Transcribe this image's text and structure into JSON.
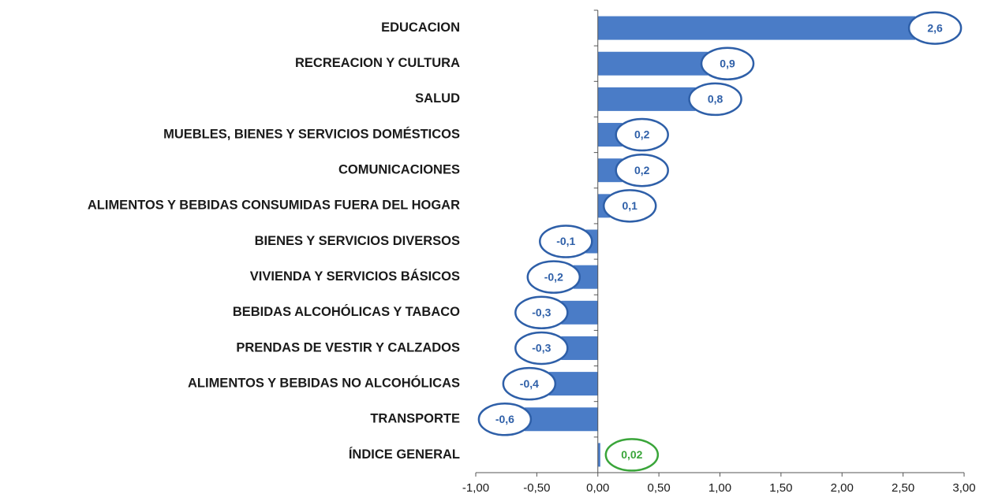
{
  "chart_data": {
    "type": "barh",
    "categories": [
      "EDUCACION",
      "RECREACION Y CULTURA",
      "SALUD",
      "MUEBLES, BIENES Y SERVICIOS DOMÉSTICOS",
      "COMUNICACIONES",
      "ALIMENTOS Y BEBIDAS CONSUMIDAS FUERA DEL HOGAR",
      "BIENES Y SERVICIOS DIVERSOS",
      "VIVIENDA Y SERVICIOS BÁSICOS",
      "BEBIDAS ALCOHÓLICAS Y TABACO",
      "PRENDAS DE VESTIR Y CALZADOS",
      "ALIMENTOS Y BEBIDAS NO ALCOHÓLICAS",
      "TRANSPORTE",
      "ÍNDICE GENERAL"
    ],
    "values": [
      2.6,
      0.9,
      0.8,
      0.2,
      0.2,
      0.1,
      -0.1,
      -0.2,
      -0.3,
      -0.3,
      -0.4,
      -0.6,
      0.02
    ],
    "value_labels": [
      "2,6",
      "0,9",
      "0,8",
      "0,2",
      "0,2",
      "0,1",
      "-0,1",
      "-0,2",
      "-0,3",
      "-0,3",
      "-0,4",
      "-0,6",
      "0,02"
    ],
    "color": "#4a7cc7",
    "label_colors": [
      "#2e5fa8",
      "#2e5fa8",
      "#2e5fa8",
      "#2e5fa8",
      "#2e5fa8",
      "#2e5fa8",
      "#2e5fa8",
      "#2e5fa8",
      "#2e5fa8",
      "#2e5fa8",
      "#2e5fa8",
      "#2e5fa8",
      "#3aa53a"
    ],
    "xlim": [
      -1,
      3
    ],
    "xticks": [
      {
        "value": -1,
        "label": "-1,00"
      },
      {
        "value": -0.5,
        "label": "-0,50"
      },
      {
        "value": 0,
        "label": "0,00"
      },
      {
        "value": 0.5,
        "label": "0,50"
      },
      {
        "value": 1,
        "label": "1,00"
      },
      {
        "value": 1.5,
        "label": "1,50"
      },
      {
        "value": 2,
        "label": "2,00"
      },
      {
        "value": 2.5,
        "label": "2,50"
      },
      {
        "value": 3,
        "label": "3,00"
      }
    ],
    "grid": false
  }
}
